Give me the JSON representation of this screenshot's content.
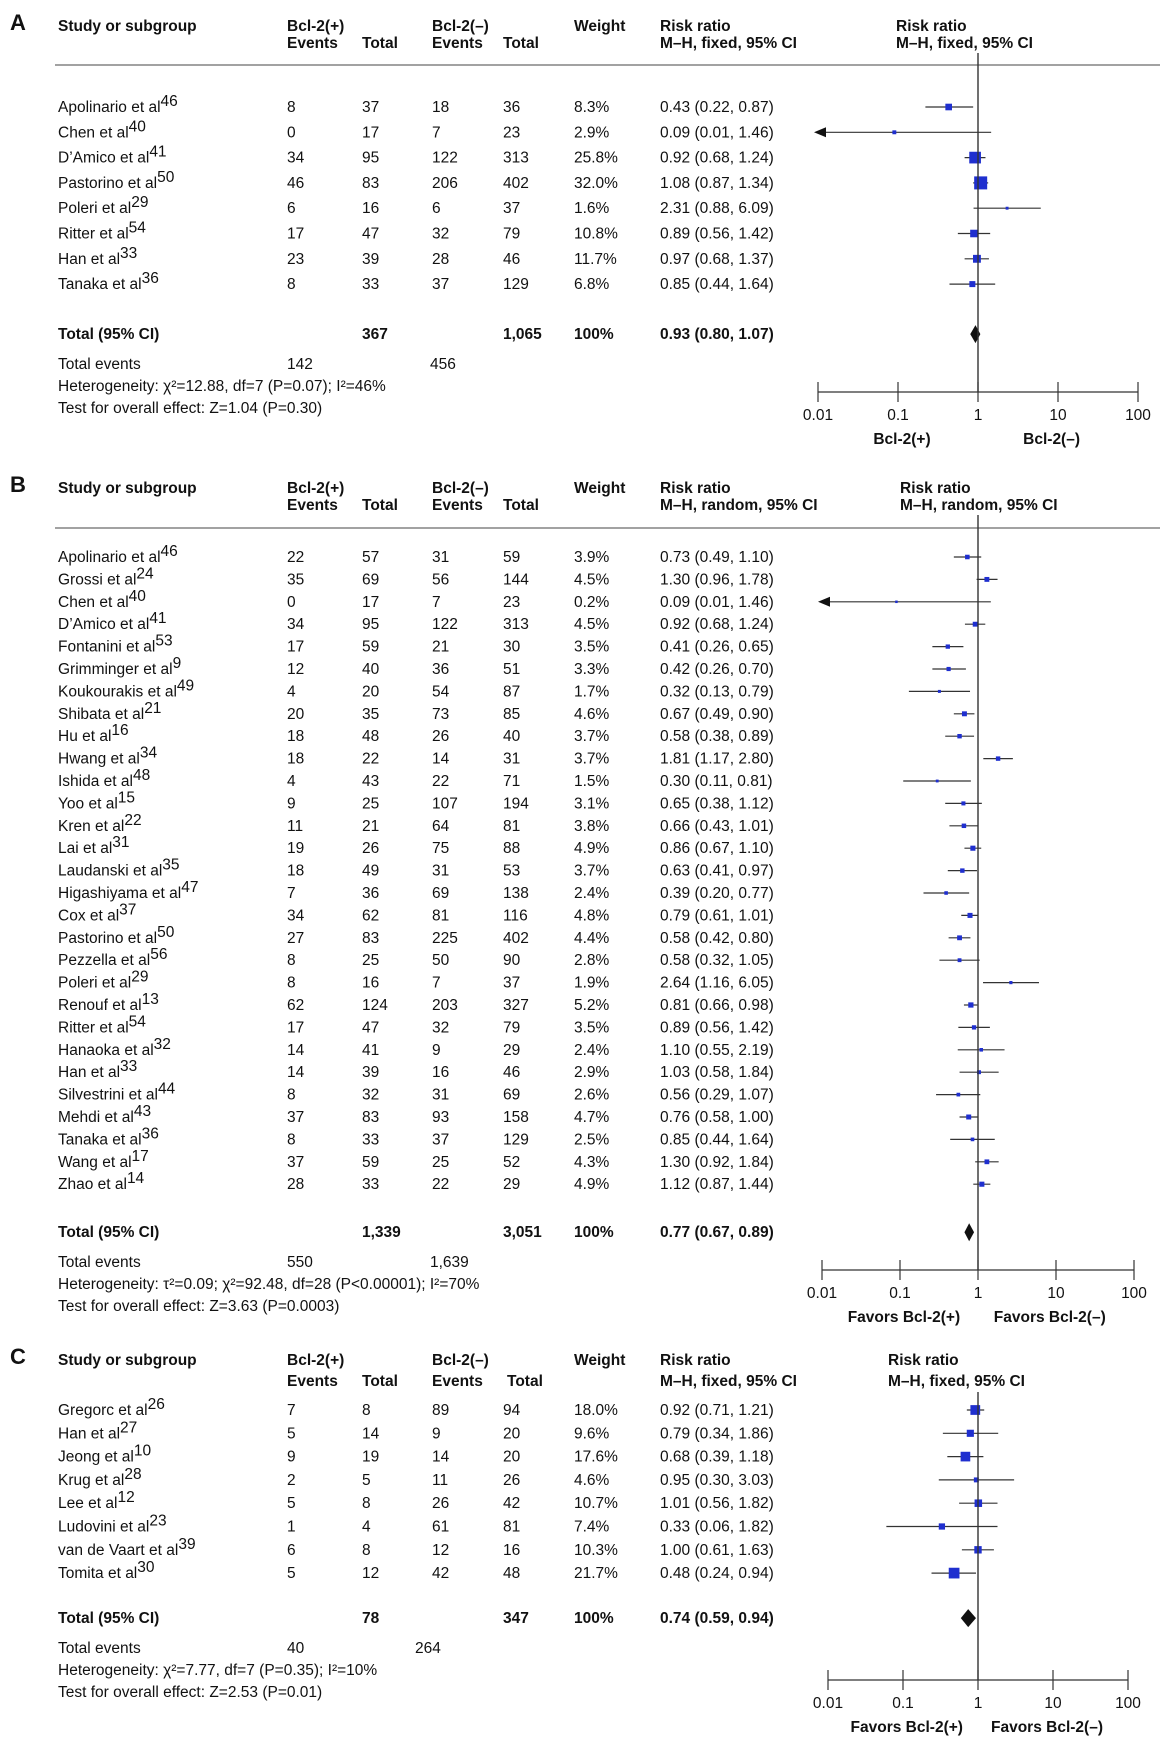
{
  "panels": [
    {
      "label": "A",
      "headers": {
        "study": "Study or subgroup",
        "group1": "Bcl-2(+)",
        "group2": "Bcl-2(–)",
        "events": "Events",
        "total": "Total",
        "weight": "Weight",
        "rr": "Risk ratio",
        "method": "M–H, fixed, 95% CI"
      },
      "studies": [
        {
          "name": "Apolinario et al",
          "ref": "46",
          "e1": "8",
          "t1": "37",
          "e2": "18",
          "t2": "36",
          "weight": "8.3%",
          "ci_text": "0.43 (0.22, 0.87)",
          "rr": 0.43,
          "lo": 0.22,
          "hi": 0.87,
          "w": 8.3
        },
        {
          "name": "Chen et al",
          "ref": "40",
          "e1": "0",
          "t1": "17",
          "e2": "7",
          "t2": "23",
          "weight": "2.9%",
          "ci_text": "0.09 (0.01, 1.46)",
          "rr": 0.09,
          "lo": 0.01,
          "hi": 1.46,
          "w": 2.9
        },
        {
          "name": "D’Amico et al",
          "ref": "41",
          "e1": "34",
          "t1": "95",
          "e2": "122",
          "t2": "313",
          "weight": "25.8%",
          "ci_text": "0.92 (0.68, 1.24)",
          "rr": 0.92,
          "lo": 0.68,
          "hi": 1.24,
          "w": 25.8
        },
        {
          "name": "Pastorino et al",
          "ref": "50",
          "e1": "46",
          "t1": "83",
          "e2": "206",
          "t2": "402",
          "weight": "32.0%",
          "ci_text": "1.08 (0.87, 1.34)",
          "rr": 1.08,
          "lo": 0.87,
          "hi": 1.34,
          "w": 32.0
        },
        {
          "name": "Poleri et al",
          "ref": "29",
          "e1": "6",
          "t1": "16",
          "e2": "6",
          "t2": "37",
          "weight": "1.6%",
          "ci_text": "2.31 (0.88, 6.09)",
          "rr": 2.31,
          "lo": 0.88,
          "hi": 6.09,
          "w": 1.6
        },
        {
          "name": "Ritter et al",
          "ref": "54",
          "e1": "17",
          "t1": "47",
          "e2": "32",
          "t2": "79",
          "weight": "10.8%",
          "ci_text": "0.89 (0.56, 1.42)",
          "rr": 0.89,
          "lo": 0.56,
          "hi": 1.42,
          "w": 10.8
        },
        {
          "name": "Han et al",
          "ref": "33",
          "e1": "23",
          "t1": "39",
          "e2": "28",
          "t2": "46",
          "weight": "11.7%",
          "ci_text": "0.97 (0.68, 1.37)",
          "rr": 0.97,
          "lo": 0.68,
          "hi": 1.37,
          "w": 11.7
        },
        {
          "name": "Tanaka et al",
          "ref": "36",
          "e1": "8",
          "t1": "33",
          "e2": "37",
          "t2": "129",
          "weight": "6.8%",
          "ci_text": "0.85 (0.44, 1.64)",
          "rr": 0.85,
          "lo": 0.44,
          "hi": 1.64,
          "w": 6.8
        }
      ],
      "total": {
        "label": "Total (95% CI)",
        "t1": "367",
        "t2": "1,065",
        "weight": "100%",
        "ci_text": "0.93 (0.80, 1.07)",
        "rr": 0.93,
        "lo": 0.8,
        "hi": 1.07
      },
      "total_events": {
        "label": "Total events",
        "e1": "142",
        "e2": "456"
      },
      "heterogeneity": "Heterogeneity: χ²=12.88, df=7 (P=0.07); I²=46%",
      "overall": "Test for overall effect: Z=1.04 (P=0.30)",
      "axis": {
        "ticks": [
          "0.01",
          "0.1",
          "1",
          "10",
          "100"
        ],
        "left_label": "Bcl-2(+)",
        "right_label": "Bcl-2(–)"
      }
    },
    {
      "label": "B",
      "headers": {
        "study": "Study or subgroup",
        "group1": "Bcl-2(+)",
        "group2": "Bcl-2(–)",
        "events": "Events",
        "total": "Total",
        "weight": "Weight",
        "rr": "Risk ratio",
        "method": "M–H, random, 95% CI"
      },
      "studies": [
        {
          "name": "Apolinario et al",
          "ref": "46",
          "e1": "22",
          "t1": "57",
          "e2": "31",
          "t2": "59",
          "weight": "3.9%",
          "ci_text": "0.73 (0.49, 1.10)",
          "rr": 0.73,
          "lo": 0.49,
          "hi": 1.1,
          "w": 3.9
        },
        {
          "name": "Grossi et al",
          "ref": "24",
          "e1": "35",
          "t1": "69",
          "e2": "56",
          "t2": "144",
          "weight": "4.5%",
          "ci_text": "1.30 (0.96, 1.78)",
          "rr": 1.3,
          "lo": 0.96,
          "hi": 1.78,
          "w": 4.5
        },
        {
          "name": "Chen et al",
          "ref": "40",
          "e1": "0",
          "t1": "17",
          "e2": "7",
          "t2": "23",
          "weight": "0.2%",
          "ci_text": "0.09 (0.01, 1.46)",
          "rr": 0.09,
          "lo": 0.01,
          "hi": 1.46,
          "w": 0.2
        },
        {
          "name": "D’Amico et al",
          "ref": "41",
          "e1": "34",
          "t1": "95",
          "e2": "122",
          "t2": "313",
          "weight": "4.5%",
          "ci_text": "0.92 (0.68, 1.24)",
          "rr": 0.92,
          "lo": 0.68,
          "hi": 1.24,
          "w": 4.5
        },
        {
          "name": "Fontanini et al",
          "ref": "53",
          "e1": "17",
          "t1": "59",
          "e2": "21",
          "t2": "30",
          "weight": "3.5%",
          "ci_text": "0.41 (0.26, 0.65)",
          "rr": 0.41,
          "lo": 0.26,
          "hi": 0.65,
          "w": 3.5
        },
        {
          "name": "Grimminger et al",
          "ref": "9",
          "e1": "12",
          "t1": "40",
          "e2": "36",
          "t2": "51",
          "weight": "3.3%",
          "ci_text": "0.42 (0.26, 0.70)",
          "rr": 0.42,
          "lo": 0.26,
          "hi": 0.7,
          "w": 3.3
        },
        {
          "name": "Koukourakis et al",
          "ref": "49",
          "e1": "4",
          "t1": "20",
          "e2": "54",
          "t2": "87",
          "weight": "1.7%",
          "ci_text": "0.32 (0.13, 0.79)",
          "rr": 0.32,
          "lo": 0.13,
          "hi": 0.79,
          "w": 1.7
        },
        {
          "name": "Shibata et al",
          "ref": "21",
          "e1": "20",
          "t1": "35",
          "e2": "73",
          "t2": "85",
          "weight": "4.6%",
          "ci_text": "0.67 (0.49, 0.90)",
          "rr": 0.67,
          "lo": 0.49,
          "hi": 0.9,
          "w": 4.6
        },
        {
          "name": "Hu et al",
          "ref": "16",
          "e1": "18",
          "t1": "48",
          "e2": "26",
          "t2": "40",
          "weight": "3.7%",
          "ci_text": "0.58 (0.38, 0.89)",
          "rr": 0.58,
          "lo": 0.38,
          "hi": 0.89,
          "w": 3.7
        },
        {
          "name": "Hwang et al",
          "ref": "34",
          "e1": "18",
          "t1": "22",
          "e2": "14",
          "t2": "31",
          "weight": "3.7%",
          "ci_text": "1.81 (1.17, 2.80)",
          "rr": 1.81,
          "lo": 1.17,
          "hi": 2.8,
          "w": 3.7
        },
        {
          "name": "Ishida et al",
          "ref": "48",
          "e1": "4",
          "t1": "43",
          "e2": "22",
          "t2": "71",
          "weight": "1.5%",
          "ci_text": "0.30 (0.11, 0.81)",
          "rr": 0.3,
          "lo": 0.11,
          "hi": 0.81,
          "w": 1.5
        },
        {
          "name": "Yoo et al",
          "ref": "15",
          "e1": "9",
          "t1": "25",
          "e2": "107",
          "t2": "194",
          "weight": "3.1%",
          "ci_text": "0.65 (0.38, 1.12)",
          "rr": 0.65,
          "lo": 0.38,
          "hi": 1.12,
          "w": 3.1
        },
        {
          "name": "Kren et al",
          "ref": "22",
          "e1": "11",
          "t1": "21",
          "e2": "64",
          "t2": "81",
          "weight": "3.8%",
          "ci_text": "0.66 (0.43, 1.01)",
          "rr": 0.66,
          "lo": 0.43,
          "hi": 1.01,
          "w": 3.8
        },
        {
          "name": "Lai et al",
          "ref": "31",
          "e1": "19",
          "t1": "26",
          "e2": "75",
          "t2": "88",
          "weight": "4.9%",
          "ci_text": "0.86 (0.67, 1.10)",
          "rr": 0.86,
          "lo": 0.67,
          "hi": 1.1,
          "w": 4.9
        },
        {
          "name": "Laudanski et al",
          "ref": "35",
          "e1": "18",
          "t1": "49",
          "e2": "31",
          "t2": "53",
          "weight": "3.7%",
          "ci_text": "0.63 (0.41, 0.97)",
          "rr": 0.63,
          "lo": 0.41,
          "hi": 0.97,
          "w": 3.7
        },
        {
          "name": "Higashiyama et al",
          "ref": "47",
          "e1": "7",
          "t1": "36",
          "e2": "69",
          "t2": "138",
          "weight": "2.4%",
          "ci_text": "0.39 (0.20, 0.77)",
          "rr": 0.39,
          "lo": 0.2,
          "hi": 0.77,
          "w": 2.4
        },
        {
          "name": "Cox et al",
          "ref": "37",
          "e1": "34",
          "t1": "62",
          "e2": "81",
          "t2": "116",
          "weight": "4.8%",
          "ci_text": "0.79 (0.61, 1.01)",
          "rr": 0.79,
          "lo": 0.61,
          "hi": 1.01,
          "w": 4.8
        },
        {
          "name": "Pastorino et al",
          "ref": "50",
          "e1": "27",
          "t1": "83",
          "e2": "225",
          "t2": "402",
          "weight": "4.4%",
          "ci_text": "0.58 (0.42, 0.80)",
          "rr": 0.58,
          "lo": 0.42,
          "hi": 0.8,
          "w": 4.4
        },
        {
          "name": "Pezzella et al",
          "ref": "56",
          "e1": "8",
          "t1": "25",
          "e2": "50",
          "t2": "90",
          "weight": "2.8%",
          "ci_text": "0.58 (0.32, 1.05)",
          "rr": 0.58,
          "lo": 0.32,
          "hi": 1.05,
          "w": 2.8
        },
        {
          "name": "Poleri et al",
          "ref": "29",
          "e1": "8",
          "t1": "16",
          "e2": "7",
          "t2": "37",
          "weight": "1.9%",
          "ci_text": "2.64 (1.16, 6.05)",
          "rr": 2.64,
          "lo": 1.16,
          "hi": 6.05,
          "w": 1.9
        },
        {
          "name": "Renouf et al",
          "ref": "13",
          "e1": "62",
          "t1": "124",
          "e2": "203",
          "t2": "327",
          "weight": "5.2%",
          "ci_text": "0.81 (0.66, 0.98)",
          "rr": 0.81,
          "lo": 0.66,
          "hi": 0.98,
          "w": 5.2
        },
        {
          "name": "Ritter et al",
          "ref": "54",
          "e1": "17",
          "t1": "47",
          "e2": "32",
          "t2": "79",
          "weight": "3.5%",
          "ci_text": "0.89 (0.56, 1.42)",
          "rr": 0.89,
          "lo": 0.56,
          "hi": 1.42,
          "w": 3.5
        },
        {
          "name": "Hanaoka et al",
          "ref": "32",
          "e1": "14",
          "t1": "41",
          "e2": "9",
          "t2": "29",
          "weight": "2.4%",
          "ci_text": "1.10 (0.55, 2.19)",
          "rr": 1.1,
          "lo": 0.55,
          "hi": 2.19,
          "w": 2.4
        },
        {
          "name": "Han et al",
          "ref": "33",
          "e1": "14",
          "t1": "39",
          "e2": "16",
          "t2": "46",
          "weight": "2.9%",
          "ci_text": "1.03 (0.58, 1.84)",
          "rr": 1.03,
          "lo": 0.58,
          "hi": 1.84,
          "w": 2.9
        },
        {
          "name": "Silvestrini et al",
          "ref": "44",
          "e1": "8",
          "t1": "32",
          "e2": "31",
          "t2": "69",
          "weight": "2.6%",
          "ci_text": "0.56 (0.29, 1.07)",
          "rr": 0.56,
          "lo": 0.29,
          "hi": 1.07,
          "w": 2.6
        },
        {
          "name": "Mehdi et al",
          "ref": "43",
          "e1": "37",
          "t1": "83",
          "e2": "93",
          "t2": "158",
          "weight": "4.7%",
          "ci_text": "0.76 (0.58, 1.00)",
          "rr": 0.76,
          "lo": 0.58,
          "hi": 1.0,
          "w": 4.7
        },
        {
          "name": "Tanaka et al",
          "ref": "36",
          "e1": "8",
          "t1": "33",
          "e2": "37",
          "t2": "129",
          "weight": "2.5%",
          "ci_text": "0.85 (0.44, 1.64)",
          "rr": 0.85,
          "lo": 0.44,
          "hi": 1.64,
          "w": 2.5
        },
        {
          "name": "Wang et al",
          "ref": "17",
          "e1": "37",
          "t1": "59",
          "e2": "25",
          "t2": "52",
          "weight": "4.3%",
          "ci_text": "1.30 (0.92, 1.84)",
          "rr": 1.3,
          "lo": 0.92,
          "hi": 1.84,
          "w": 4.3
        },
        {
          "name": "Zhao et al",
          "ref": "14",
          "e1": "28",
          "t1": "33",
          "e2": "22",
          "t2": "29",
          "weight": "4.9%",
          "ci_text": "1.12 (0.87, 1.44)",
          "rr": 1.12,
          "lo": 0.87,
          "hi": 1.44,
          "w": 4.9
        }
      ],
      "total": {
        "label": "Total (95% CI)",
        "t1": "1,339",
        "t2": "3,051",
        "weight": "100%",
        "ci_text": "0.77 (0.67, 0.89)",
        "rr": 0.77,
        "lo": 0.67,
        "hi": 0.89
      },
      "total_events": {
        "label": "Total events",
        "e1": "550",
        "e2": "1,639"
      },
      "heterogeneity": "Heterogeneity: τ²=0.09; χ²=92.48, df=28 (P<0.00001); I²=70%",
      "overall": "Test for overall effect: Z=3.63 (P=0.0003)",
      "axis": {
        "ticks": [
          "0.01",
          "0.1",
          "1",
          "10",
          "100"
        ],
        "left_label": "Favors Bcl-2(+)",
        "right_label": "Favors Bcl-2(–)"
      }
    },
    {
      "label": "C",
      "headers": {
        "study": "Study or subgroup",
        "group1": "Bcl-2(+)",
        "group2": "Bcl-2(–)",
        "events": "Events",
        "total": "Total",
        "weight": "Weight",
        "rr": "Risk ratio",
        "method": "M–H, fixed, 95% CI"
      },
      "studies": [
        {
          "name": "Gregorc et al",
          "ref": "26",
          "e1": "7",
          "t1": "8",
          "e2": "89",
          "t2": "94",
          "weight": "18.0%",
          "ci_text": "0.92 (0.71, 1.21)",
          "rr": 0.92,
          "lo": 0.71,
          "hi": 1.21,
          "w": 18.0
        },
        {
          "name": "Han et al",
          "ref": "27",
          "e1": "5",
          "t1": "14",
          "e2": "9",
          "t2": "20",
          "weight": "9.6%",
          "ci_text": "0.79 (0.34, 1.86)",
          "rr": 0.79,
          "lo": 0.34,
          "hi": 1.86,
          "w": 9.6
        },
        {
          "name": "Jeong et al",
          "ref": "10",
          "e1": "9",
          "t1": "19",
          "e2": "14",
          "t2": "20",
          "weight": "17.6%",
          "ci_text": "0.68 (0.39, 1.18)",
          "rr": 0.68,
          "lo": 0.39,
          "hi": 1.18,
          "w": 17.6
        },
        {
          "name": "Krug et al",
          "ref": "28",
          "e1": "2",
          "t1": "5",
          "e2": "11",
          "t2": "26",
          "weight": "4.6%",
          "ci_text": "0.95 (0.30, 3.03)",
          "rr": 0.95,
          "lo": 0.3,
          "hi": 3.03,
          "w": 4.6
        },
        {
          "name": "Lee et al",
          "ref": "12",
          "e1": "5",
          "t1": "8",
          "e2": "26",
          "t2": "42",
          "weight": "10.7%",
          "ci_text": "1.01 (0.56, 1.82)",
          "rr": 1.01,
          "lo": 0.56,
          "hi": 1.82,
          "w": 10.7
        },
        {
          "name": "Ludovini et al",
          "ref": "23",
          "e1": "1",
          "t1": "4",
          "e2": "61",
          "t2": "81",
          "weight": "7.4%",
          "ci_text": "0.33 (0.06, 1.82)",
          "rr": 0.33,
          "lo": 0.06,
          "hi": 1.82,
          "w": 7.4
        },
        {
          "name": "van de Vaart et al",
          "ref": "39",
          "e1": "6",
          "t1": "8",
          "e2": "12",
          "t2": "16",
          "weight": "10.3%",
          "ci_text": "1.00 (0.61, 1.63)",
          "rr": 1.0,
          "lo": 0.61,
          "hi": 1.63,
          "w": 10.3
        },
        {
          "name": "Tomita et al",
          "ref": "30",
          "e1": "5",
          "t1": "12",
          "e2": "42",
          "t2": "48",
          "weight": "21.7%",
          "ci_text": "0.48 (0.24, 0.94)",
          "rr": 0.48,
          "lo": 0.24,
          "hi": 0.94,
          "w": 21.7
        }
      ],
      "total": {
        "label": "Total (95% CI)",
        "t1": "78",
        "t2": "347",
        "weight": "100%",
        "ci_text": "0.74 (0.59, 0.94)",
        "rr": 0.74,
        "lo": 0.59,
        "hi": 0.94
      },
      "total_events": {
        "label": "Total events",
        "e1": "40",
        "e2": "264"
      },
      "heterogeneity": "Heterogeneity: χ²=7.77, df=7 (P=0.35); I²=10%",
      "overall": "Test for overall effect: Z=2.53 (P=0.01)",
      "axis": {
        "ticks": [
          "0.01",
          "0.1",
          "1",
          "10",
          "100"
        ],
        "left_label": "Favors Bcl-2(+)",
        "right_label": "Favors Bcl-2(–)"
      }
    }
  ],
  "chart_data": [
    {
      "type": "forest",
      "panel": "A",
      "scale": "log",
      "xlim": [
        0.01,
        100
      ],
      "null_value": 1,
      "measure": "Risk ratio, M–H, fixed, 95% CI",
      "pooled": {
        "rr": 0.93,
        "lo": 0.8,
        "hi": 1.07
      }
    },
    {
      "type": "forest",
      "panel": "B",
      "scale": "log",
      "xlim": [
        0.01,
        100
      ],
      "null_value": 1,
      "measure": "Risk ratio, M–H, random, 95% CI",
      "pooled": {
        "rr": 0.77,
        "lo": 0.67,
        "hi": 0.89
      }
    },
    {
      "type": "forest",
      "panel": "C",
      "scale": "log",
      "xlim": [
        0.01,
        100
      ],
      "null_value": 1,
      "measure": "Risk ratio, M–H, fixed, 95% CI",
      "pooled": {
        "rr": 0.74,
        "lo": 0.59,
        "hi": 0.94
      }
    }
  ],
  "colors": {
    "marker": "#1f2fcf",
    "diamond": "#111111",
    "line": "#333333",
    "text": "#111111"
  }
}
